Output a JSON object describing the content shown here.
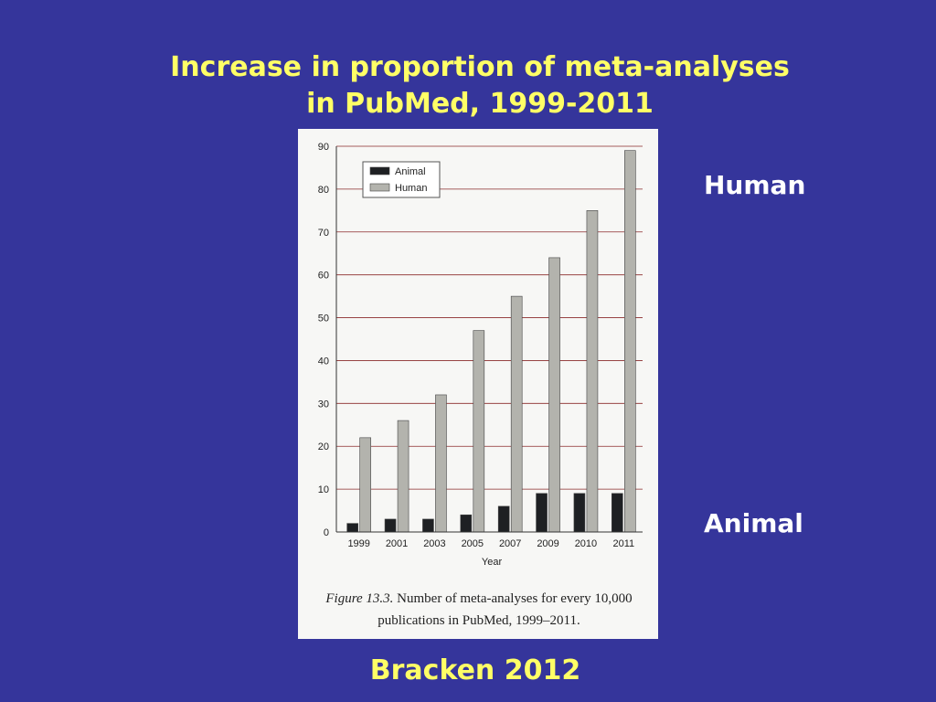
{
  "slide": {
    "title_line1": "Increase in proportion of meta-analyses",
    "title_line2": "in PubMed, 1999-2011",
    "label_human": "Human",
    "label_animal": "Animal",
    "citation": "Bracken 2012"
  },
  "chart_data": {
    "type": "bar",
    "title": "",
    "xlabel": "Year",
    "ylabel": "",
    "categories": [
      "1999",
      "2001",
      "2003",
      "2005",
      "2007",
      "2009",
      "2010",
      "2011"
    ],
    "series": [
      {
        "name": "Animal",
        "values": [
          2,
          3,
          3,
          4,
          6,
          9,
          9,
          9
        ]
      },
      {
        "name": "Human",
        "values": [
          22,
          26,
          32,
          47,
          55,
          64,
          75,
          89
        ]
      }
    ],
    "ylim": [
      0,
      90
    ],
    "yticks": [
      0,
      10,
      20,
      30,
      40,
      50,
      60,
      70,
      80,
      90
    ],
    "grid": true,
    "legend_position": "top-left",
    "caption_label": "Figure 13.3.",
    "caption_text": " Number of meta-analyses for every 10,000 publications in PubMed, 1999–2011.",
    "colors": {
      "Animal": "#1e2023",
      "Human": "#b3b3ad",
      "grid": "#8a2a2a"
    }
  }
}
